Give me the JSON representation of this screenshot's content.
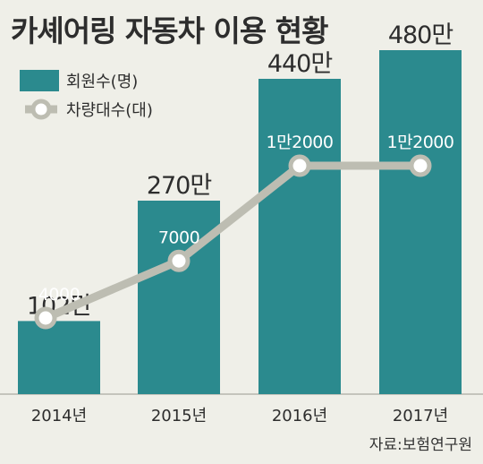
{
  "title": "카셰어링 자동차 이용 현황",
  "source": "자료:보험연구원",
  "colors": {
    "bar": "#2b8a8e",
    "line": "#bdbdb2",
    "marker_fill": "#ffffff",
    "background": "#efefe8",
    "text": "#2d2d2d"
  },
  "chart_data": {
    "type": "bar",
    "categories": [
      "2014년",
      "2015년",
      "2016년",
      "2017년"
    ],
    "series": [
      {
        "name": "회원수(명)",
        "type": "bar",
        "values": [
          1020000,
          2700000,
          4400000,
          4800000
        ],
        "labels": [
          "102만",
          "270만",
          "440만",
          "480만"
        ]
      },
      {
        "name": "차량대수(대)",
        "type": "line",
        "values": [
          4000,
          7000,
          12000,
          12000
        ],
        "labels": [
          "4000",
          "7000",
          "1만2000",
          "1만2000"
        ]
      }
    ],
    "ylim_members": [
      0,
      5000000
    ],
    "ylim_vehicles": [
      0,
      16000
    ],
    "legend": "top-left",
    "grid": false
  }
}
